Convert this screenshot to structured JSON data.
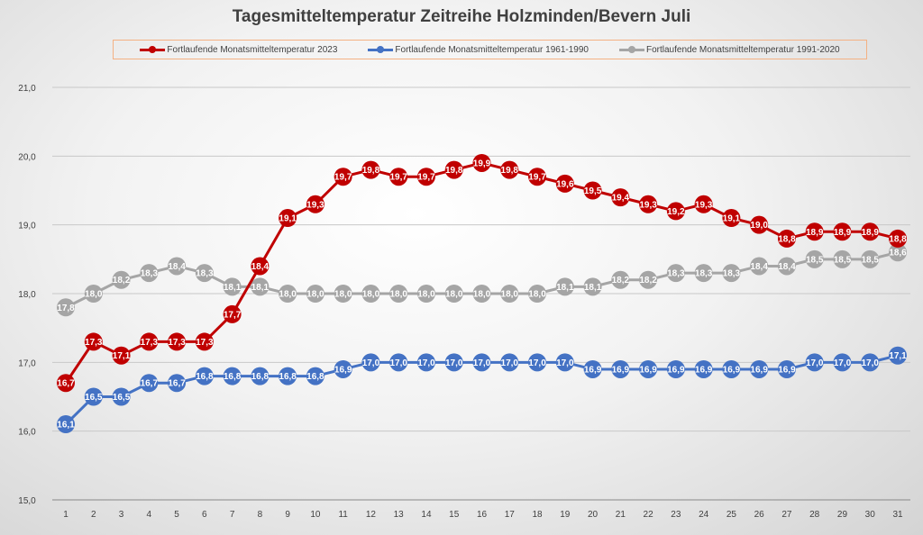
{
  "chart_data": {
    "type": "line",
    "title": "Tagesmitteltemperatur Zeitreihe Holzminden/Bevern Juli",
    "xlabel": "",
    "ylabel": "",
    "x": [
      1,
      2,
      3,
      4,
      5,
      6,
      7,
      8,
      9,
      10,
      11,
      12,
      13,
      14,
      15,
      16,
      17,
      18,
      19,
      20,
      21,
      22,
      23,
      24,
      25,
      26,
      27,
      28,
      29,
      30,
      31
    ],
    "ylim": [
      15,
      21
    ],
    "yticks": [
      "15,0",
      "16,0",
      "17,0",
      "18,0",
      "19,0",
      "20,0",
      "21,0"
    ],
    "grid": true,
    "legend_position": "top",
    "series": [
      {
        "name": "Fortlaufende Monatsmitteltemperatur 2023",
        "color": "#c00000",
        "values": [
          16.7,
          17.3,
          17.1,
          17.3,
          17.3,
          17.3,
          17.7,
          18.4,
          19.1,
          19.3,
          19.7,
          19.8,
          19.7,
          19.7,
          19.8,
          19.9,
          19.8,
          19.7,
          19.6,
          19.5,
          19.4,
          19.3,
          19.2,
          19.3,
          19.1,
          19.0,
          18.8,
          18.9,
          18.9,
          18.9,
          18.8
        ]
      },
      {
        "name": "Fortlaufende Monatsmitteltemperatur 1961-1990",
        "color": "#4472c4",
        "values": [
          16.1,
          16.5,
          16.5,
          16.7,
          16.7,
          16.8,
          16.8,
          16.8,
          16.8,
          16.8,
          16.9,
          17.0,
          17.0,
          17.0,
          17.0,
          17.0,
          17.0,
          17.0,
          17.0,
          16.9,
          16.9,
          16.9,
          16.9,
          16.9,
          16.9,
          16.9,
          16.9,
          17.0,
          17.0,
          17.0,
          17.1
        ]
      },
      {
        "name": "Fortlaufende Monatsmitteltemperatur 1991-2020",
        "color": "#a5a5a5",
        "values": [
          17.8,
          18.0,
          18.2,
          18.3,
          18.4,
          18.3,
          18.1,
          18.1,
          18.0,
          18.0,
          18.0,
          18.0,
          18.0,
          18.0,
          18.0,
          18.0,
          18.0,
          18.0,
          18.1,
          18.1,
          18.2,
          18.2,
          18.3,
          18.3,
          18.3,
          18.4,
          18.4,
          18.5,
          18.5,
          18.5,
          18.6
        ]
      }
    ]
  }
}
